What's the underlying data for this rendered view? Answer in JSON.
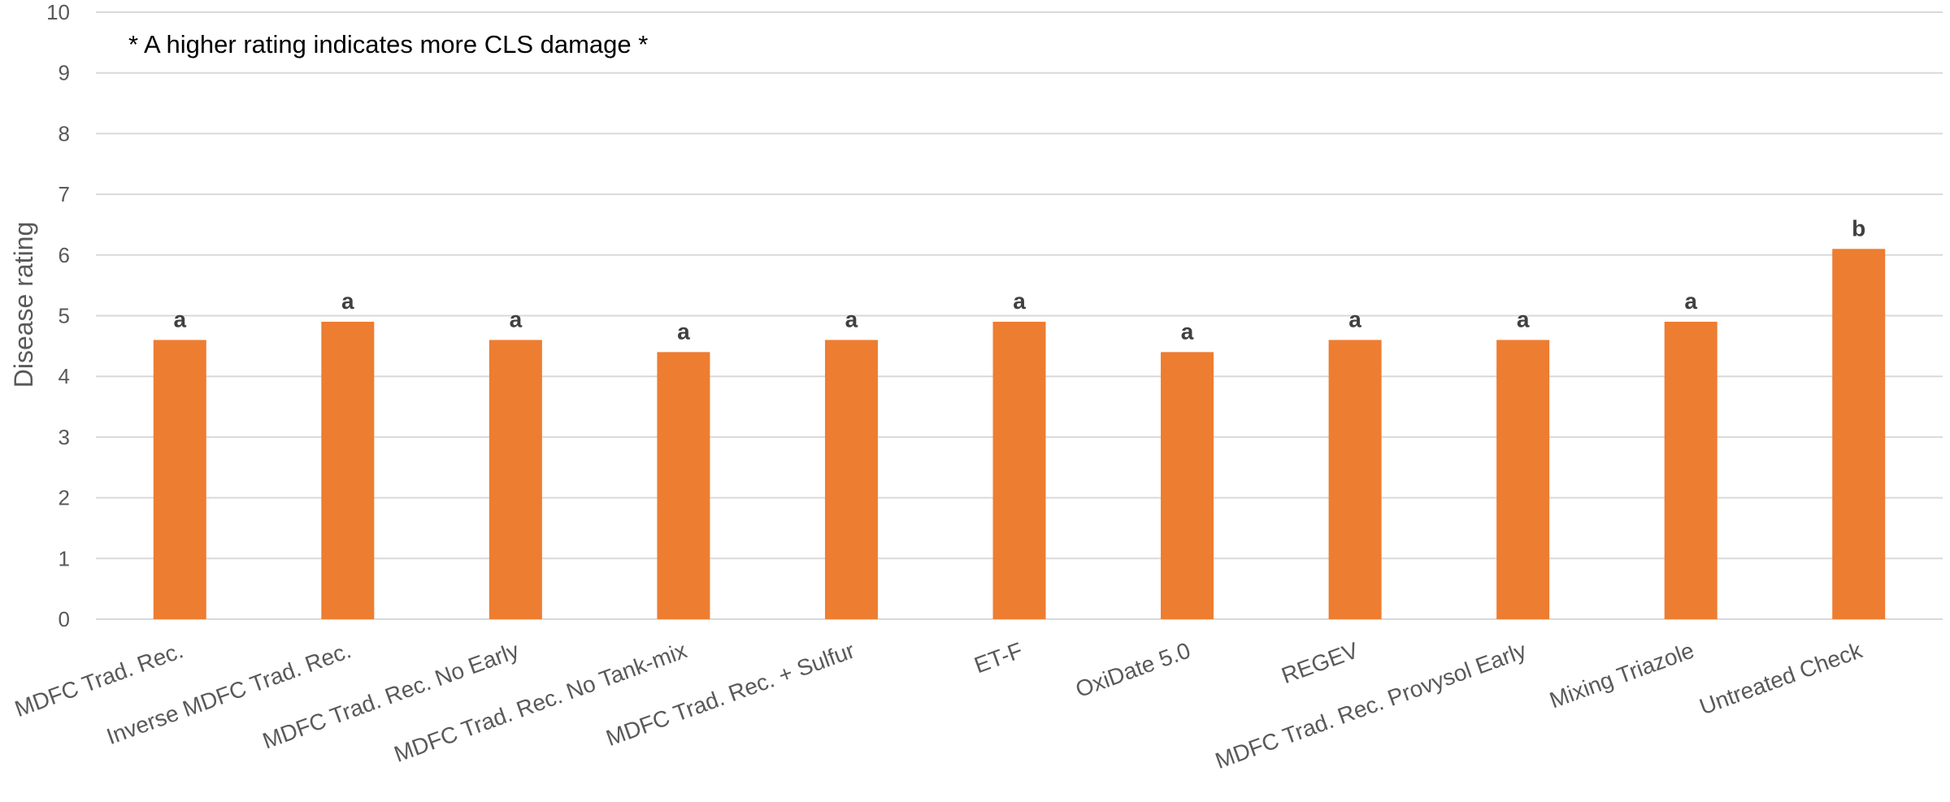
{
  "chart_data": {
    "type": "bar",
    "title": "",
    "xlabel": "",
    "ylabel": "Disease rating",
    "ylim": [
      0,
      10
    ],
    "yticks": [
      "0",
      "1",
      "2",
      "3",
      "4",
      "5",
      "6",
      "7",
      "8",
      "9",
      "10"
    ],
    "grid": true,
    "annotation": "* A higher rating indicates more CLS damage *",
    "categories": [
      "MDFC Trad. Rec.",
      "Inverse MDFC Trad. Rec.",
      "MDFC Trad. Rec. No Early",
      "MDFC Trad. Rec. No Tank-mix",
      "MDFC Trad. Rec. + Sulfur",
      "ET-F",
      "OxiDate 5.0",
      "REGEV",
      "MDFC Trad. Rec. Provysol Early",
      "Mixing Triazole",
      "Untreated Check"
    ],
    "values": [
      4.6,
      4.9,
      4.6,
      4.4,
      4.6,
      4.9,
      4.4,
      4.6,
      4.6,
      4.9,
      6.1
    ],
    "data_labels": [
      "a",
      "a",
      "a",
      "a",
      "a",
      "a",
      "a",
      "a",
      "a",
      "a",
      "b"
    ],
    "bar_color": "#ED7D31",
    "grid_color": "#D9D9D9"
  }
}
